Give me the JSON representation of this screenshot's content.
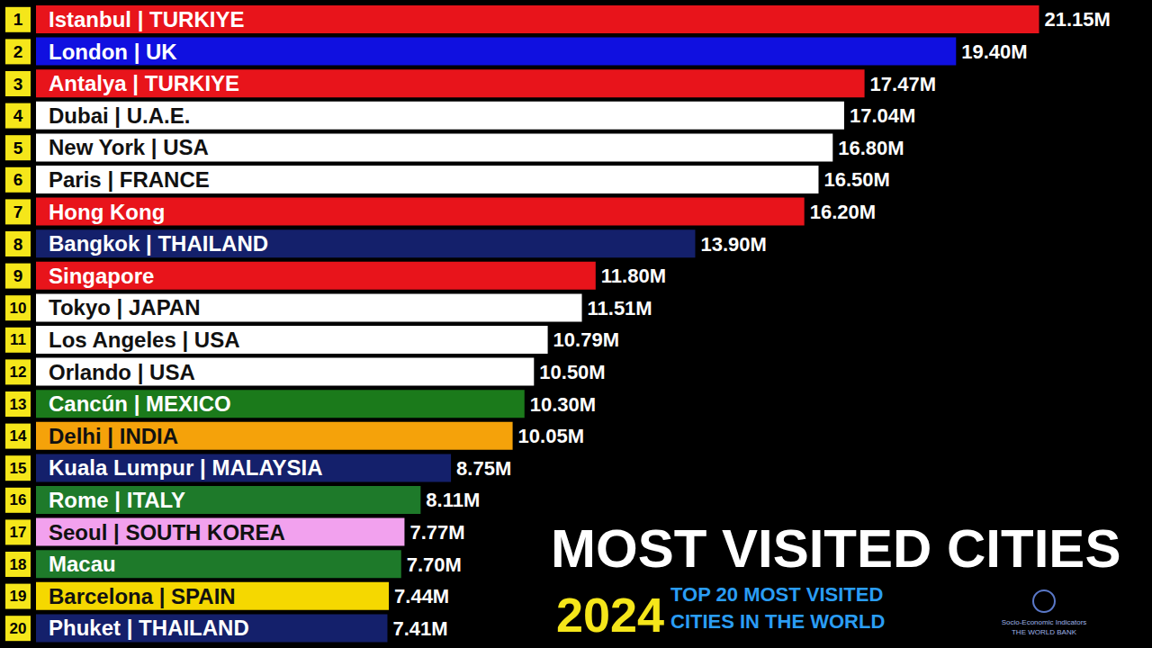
{
  "chart_data": {
    "type": "bar",
    "orientation": "horizontal",
    "title": "MOST VISITED CITIES",
    "year": "2024",
    "subtitle": "TOP 20 MOST VISITED CITIES IN THE WORLD",
    "sources": [
      "Socio-Economic Indicators",
      "THE WORLD BANK"
    ],
    "categories": [
      "Istanbul | TURKIYE",
      "London | UK",
      "Antalya | TURKIYE",
      "Dubai | U.A.E.",
      "New York | USA",
      "Paris | FRANCE",
      "Hong Kong",
      "Bangkok | THAILAND",
      "Singapore",
      "Tokyo | JAPAN",
      "Los Angeles | USA",
      "Orlando | USA",
      "Cancún | MEXICO",
      "Delhi | INDIA",
      "Kuala Lumpur | MALAYSIA",
      "Rome | ITALY",
      "Seoul | SOUTH KOREA",
      "Macau",
      "Barcelona | SPAIN",
      "Phuket | THAILAND"
    ],
    "rank_labels": [
      "1",
      "2",
      "3",
      "4",
      "5",
      "6",
      "7",
      "8",
      "9",
      "10",
      "11",
      "12",
      "13",
      "14",
      "15",
      "16",
      "17",
      "18",
      "19",
      "20"
    ],
    "values": [
      21.15,
      19.4,
      17.47,
      17.04,
      16.8,
      16.5,
      16.2,
      13.9,
      11.8,
      11.51,
      10.79,
      10.5,
      10.3,
      10.05,
      8.75,
      8.11,
      7.77,
      7.7,
      7.44,
      7.41
    ],
    "value_labels": [
      "21.15M",
      "19.40M",
      "17.47M",
      "17.04M",
      "16.80M",
      "16.50M",
      "16.20M",
      "13.90M",
      "11.80M",
      "11.51M",
      "10.79M",
      "10.50M",
      "10.30M",
      "10.05M",
      "8.75M",
      "8.11M",
      "7.77M",
      "7.70M",
      "7.44M",
      "7.41M"
    ],
    "colors": [
      "#e8141b",
      "#1010e0",
      "#e8141b",
      "#ffffff",
      "#ffffff",
      "#ffffff",
      "#e8141b",
      "#14206b",
      "#e8141b",
      "#ffffff",
      "#ffffff",
      "#ffffff",
      "#1b7a1b",
      "#f5a20a",
      "#14206b",
      "#1e7a2a",
      "#f2a1ee",
      "#1e7a2a",
      "#f5d800",
      "#14206b"
    ],
    "xlim": [
      0,
      23
    ],
    "tick_labels": "y",
    "data_labels": true,
    "grid": false
  }
}
